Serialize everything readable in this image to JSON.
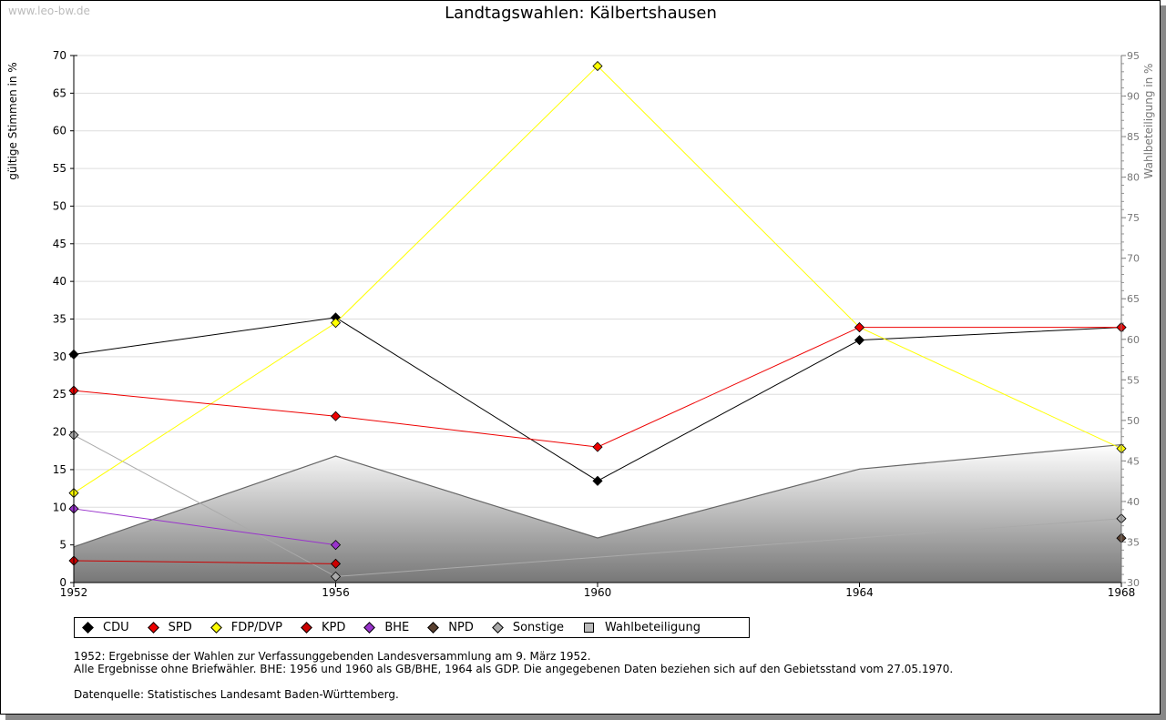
{
  "watermark": "www.leo-bw.de",
  "chart_data": {
    "type": "line",
    "title": "Landtagswahlen: Kälbertshausen",
    "ylabel": "gültige Stimmen in %",
    "y2label": "Wahlbeteiligung in %",
    "x": [
      "1952",
      "1956",
      "1960",
      "1964",
      "1968"
    ],
    "ylim": [
      0,
      70
    ],
    "yticks": [
      0,
      5,
      10,
      15,
      20,
      25,
      30,
      35,
      40,
      45,
      50,
      55,
      60,
      65,
      70
    ],
    "y2lim": [
      30,
      95
    ],
    "y2ticks": [
      30,
      35,
      40,
      45,
      50,
      55,
      60,
      65,
      70,
      75,
      80,
      85,
      90,
      95
    ],
    "series": [
      {
        "name": "Wahlbeteiligung",
        "color": "#bbbbbb",
        "axis": "right",
        "type": "area",
        "values": [
          34.4,
          45.6,
          35.5,
          44.0,
          47.0
        ]
      },
      {
        "name": "Sonstige",
        "color": "#aaaaaa",
        "values": [
          19.6,
          0.8,
          null,
          null,
          8.5
        ],
        "connect": true
      },
      {
        "name": "NPD",
        "color": "#5a4030",
        "values": [
          null,
          null,
          null,
          null,
          5.9
        ]
      },
      {
        "name": "BHE",
        "color": "#9933cc",
        "values": [
          9.8,
          5.0,
          null,
          null,
          null
        ]
      },
      {
        "name": "KPD",
        "color": "#cc0000",
        "values": [
          2.9,
          2.5,
          null,
          null,
          null
        ]
      },
      {
        "name": "CDU",
        "color": "#000000",
        "values": [
          30.3,
          35.2,
          13.5,
          32.2,
          33.9
        ]
      },
      {
        "name": "FDP/DVP",
        "color": "#ffff00",
        "values": [
          11.9,
          34.5,
          68.6,
          33.9,
          17.8
        ]
      },
      {
        "name": "SPD",
        "color": "#ee0000",
        "values": [
          25.5,
          22.1,
          18.0,
          33.9,
          33.9
        ]
      }
    ],
    "legend": [
      {
        "label": "CDU",
        "color": "#000000"
      },
      {
        "label": "SPD",
        "color": "#ee0000"
      },
      {
        "label": "FDP/DVP",
        "color": "#ffff00"
      },
      {
        "label": "KPD",
        "color": "#cc0000"
      },
      {
        "label": "BHE",
        "color": "#9933cc"
      },
      {
        "label": "NPD",
        "color": "#5a4030"
      },
      {
        "label": "Sonstige",
        "color": "#aaaaaa"
      },
      {
        "label": "Wahlbeteiligung",
        "color": "#bbbbbb",
        "square": true
      }
    ],
    "legend_position": "bottom"
  },
  "notes": [
    "1952: Ergebnisse der Wahlen zur Verfassunggebenden Landesversammlung am 9. März 1952.",
    "Alle Ergebnisse ohne Briefwähler. BHE: 1956 und 1960 als GB/BHE, 1964 als GDP. Die angegebenen Daten beziehen sich auf den Gebietsstand vom 27.05.1970.",
    "",
    "Datenquelle: Statistisches Landesamt Baden-Württemberg."
  ]
}
